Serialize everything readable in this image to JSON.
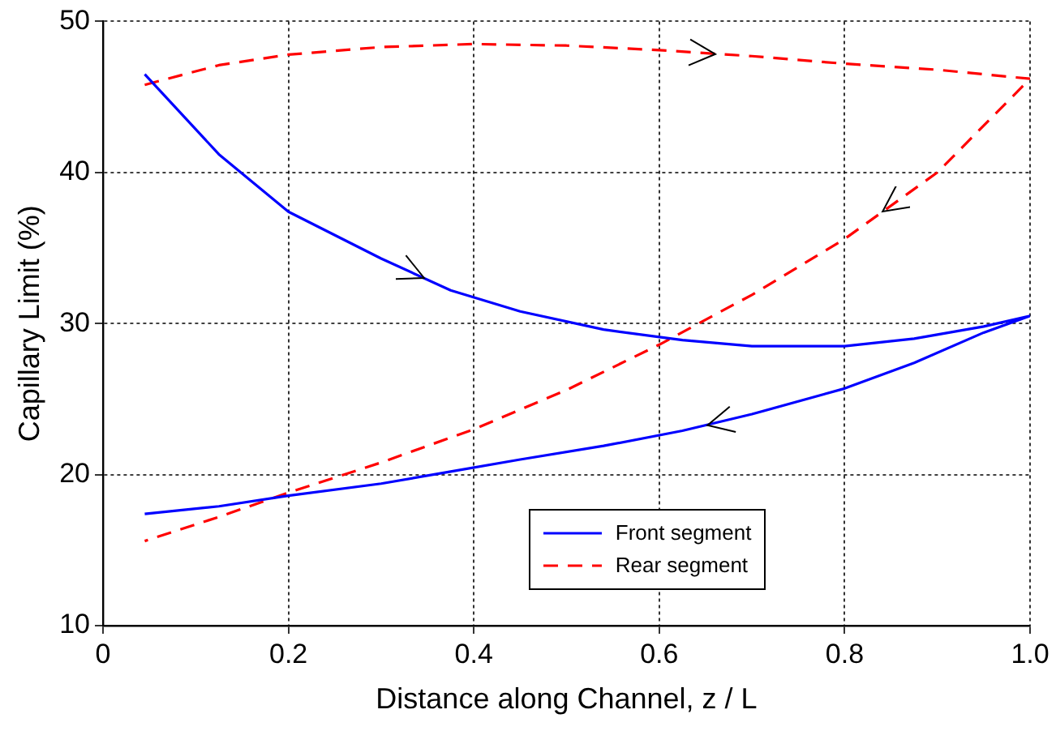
{
  "chart_data": {
    "type": "line",
    "xlabel": "Distance along Channel, z / L",
    "ylabel": "Capillary Limit (%)",
    "xlim": [
      0,
      1
    ],
    "xticks": [
      0,
      0.2,
      0.4,
      0.6,
      {
        "value": 0.8,
        "label": "0.8"
      },
      {
        "value": 1,
        "label": "1.0"
      }
    ],
    "ylim": [
      10,
      50
    ],
    "yticks": [
      10,
      20,
      30,
      40,
      50
    ],
    "grid": true,
    "legend": "bottom",
    "marker": "none",
    "series": [
      {
        "name": "Front segment",
        "color": "#0000ff",
        "line_style": "solid",
        "x": [
          0.045,
          0.125,
          0.2,
          0.3,
          0.375,
          0.45,
          0.54,
          0.625,
          0.7,
          0.8,
          0.875,
          0.95,
          1.0,
          0.95,
          0.875,
          0.8,
          0.7,
          0.625,
          0.54,
          0.45,
          0.375,
          0.3,
          0.2,
          0.125,
          0.045
        ],
        "values": [
          46.5,
          41.2,
          37.4,
          34.3,
          32.2,
          30.8,
          29.6,
          28.9,
          28.5,
          28.5,
          29.0,
          29.8,
          30.5,
          29.4,
          27.4,
          25.7,
          24.0,
          22.9,
          21.9,
          21.0,
          20.2,
          19.4,
          18.6,
          17.9,
          17.4
        ]
      },
      {
        "name": "Rear segment",
        "color": "#ff0000",
        "line_style": "dashed",
        "x": [
          0.045,
          0.125,
          0.2,
          0.3,
          0.4,
          0.5,
          0.6,
          0.7,
          0.8,
          0.9,
          1.0,
          0.9,
          0.8,
          0.7,
          0.6,
          0.5,
          0.4,
          0.3,
          0.2,
          0.125,
          0.045
        ],
        "values": [
          45.8,
          47.1,
          47.8,
          48.3,
          48.5,
          48.4,
          48.1,
          47.7,
          47.2,
          46.8,
          46.2,
          40.0,
          35.6,
          31.9,
          28.6,
          25.6,
          23.0,
          20.8,
          18.8,
          17.2,
          15.6
        ]
      }
    ]
  }
}
